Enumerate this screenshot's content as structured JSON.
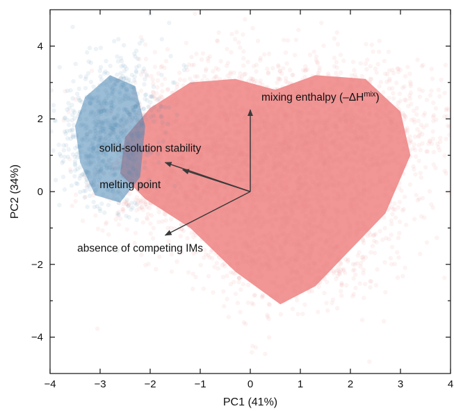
{
  "chart_data": {
    "type": "scatter",
    "title": "",
    "xlabel": "PC1 (41%)",
    "ylabel": "PC2 (34%)",
    "xlim": [
      -4,
      4
    ],
    "ylim": [
      -5,
      5
    ],
    "xticks": [
      -4,
      -3,
      -2,
      -1,
      0,
      1,
      2,
      3,
      4
    ],
    "yticks": [
      -4,
      -2,
      0,
      2,
      4
    ],
    "grid": false,
    "legend": "none",
    "series": [
      {
        "color": "#4a86b5",
        "description_points": "dense blue cloud on the left side",
        "center": [
          -2.9,
          1.2
        ],
        "extent_x": [
          -4.0,
          -1.6
        ],
        "extent_y": [
          -0.8,
          4.3
        ]
      },
      {
        "color": "#f08a8a",
        "description_points": "dense red heart-shaped cloud",
        "center": [
          0.6,
          0.4
        ],
        "extent_x": [
          -3.6,
          4.0
        ],
        "extent_y": [
          -4.5,
          4.6
        ]
      }
    ],
    "loading_vectors": [
      {
        "label": "mixing enthalpy (–ΔH",
        "label_sup": "mix",
        "label_end": ")",
        "dx": 0.0,
        "dy": 2.25,
        "lx": 1.4,
        "ly": 2.5
      },
      {
        "label": "solid-solution stability",
        "dx": -1.7,
        "dy": 0.8,
        "lx": -2.0,
        "ly": 1.1
      },
      {
        "label": "melting point",
        "dx": -1.35,
        "dy": 0.6,
        "lx": -2.4,
        "ly": 0.1
      },
      {
        "label": "absence of competing IMs",
        "dx": -1.7,
        "dy": -1.2,
        "lx": -2.2,
        "ly": -1.65
      }
    ],
    "colors": {
      "arrow": "#3a3a3a",
      "axis": "#111111"
    }
  }
}
